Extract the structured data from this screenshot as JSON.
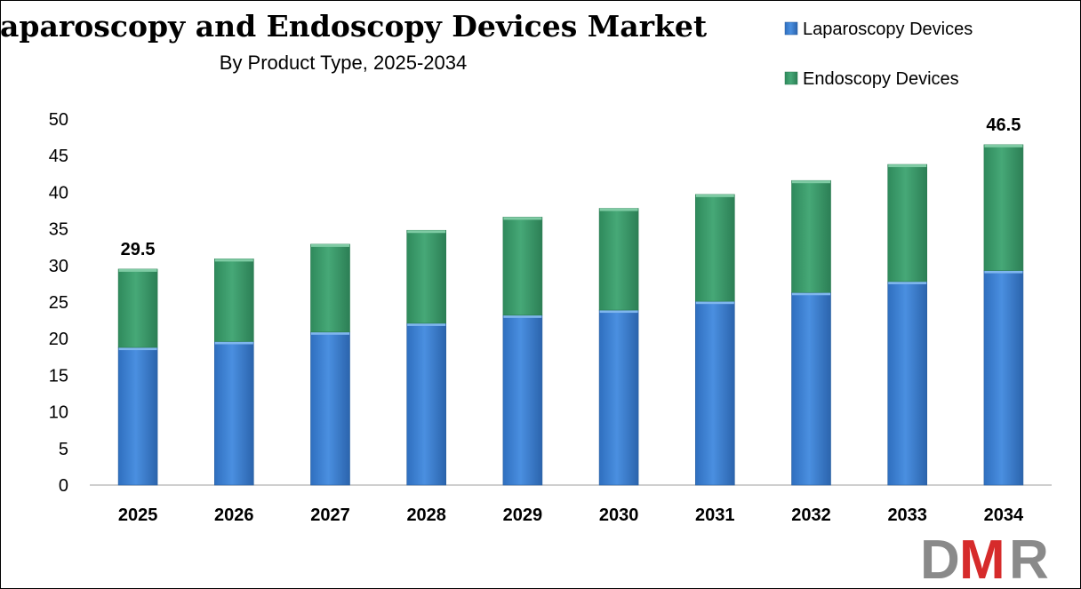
{
  "chart_data": {
    "type": "bar",
    "stacked": true,
    "title": "Laparoscopy and Endoscopy Devices Market",
    "subtitle": "By Product Type, 2025-2034",
    "categories": [
      "2025",
      "2026",
      "2027",
      "2028",
      "2029",
      "2030",
      "2031",
      "2032",
      "2033",
      "2034"
    ],
    "series": [
      {
        "name": "Laparoscopy Devices",
        "color": "#3a7fcf",
        "values": [
          18.8,
          19.6,
          20.9,
          22.1,
          23.2,
          23.9,
          25.1,
          26.3,
          27.8,
          29.3
        ]
      },
      {
        "name": "Endoscopy Devices",
        "color": "#3b9a6b",
        "values": [
          10.7,
          11.3,
          12.0,
          12.7,
          13.4,
          13.9,
          14.6,
          15.3,
          16.0,
          17.2
        ]
      }
    ],
    "ylim": [
      0,
      50
    ],
    "yticks": [
      "0",
      "5",
      "10",
      "15",
      "20",
      "25",
      "30",
      "35",
      "40",
      "45",
      "50"
    ],
    "data_labels": [
      {
        "category": "2025",
        "text": "29.5"
      },
      {
        "category": "2034",
        "text": "46.5"
      }
    ],
    "grid": false,
    "legend_position": "top-right"
  },
  "logo": {
    "text": "DMR",
    "colors": [
      "#8a8a8a",
      "#d62b2b"
    ]
  }
}
